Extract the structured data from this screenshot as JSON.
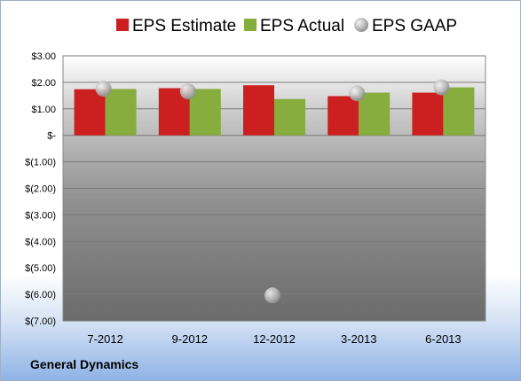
{
  "company_label": "General Dynamics",
  "colors": {
    "estimate": "#cc1f1f",
    "actual": "#86ad3e",
    "gaap": "#b9b9b9"
  },
  "chart_data": {
    "type": "bar",
    "title": "",
    "xlabel": "",
    "ylabel": "",
    "categories": [
      "7-2012",
      "9-2012",
      "12-2012",
      "3-2013",
      "6-2013"
    ],
    "series": [
      {
        "name": "EPS Estimate",
        "type": "bar",
        "values": [
          1.74,
          1.78,
          1.89,
          1.48,
          1.61
        ]
      },
      {
        "name": "EPS Actual",
        "type": "bar",
        "values": [
          1.75,
          1.75,
          1.37,
          1.61,
          1.81
        ]
      },
      {
        "name": "EPS GAAP",
        "type": "scatter",
        "values": [
          1.76,
          1.66,
          -6.04,
          1.59,
          1.81
        ]
      }
    ],
    "ylim": [
      -7,
      3
    ],
    "yticks": [
      3,
      2,
      1,
      0,
      -1,
      -2,
      -3,
      -4,
      -5,
      -6,
      -7
    ],
    "ytick_labels": [
      "$3.00",
      "$2.00",
      "$1.00",
      "$-",
      "$(1.00)",
      "$(2.00)",
      "$(3.00)",
      "$(4.00)",
      "$(5.00)",
      "$(6.00)",
      "$(7.00)"
    ],
    "grid": true,
    "legend_position": "top"
  }
}
